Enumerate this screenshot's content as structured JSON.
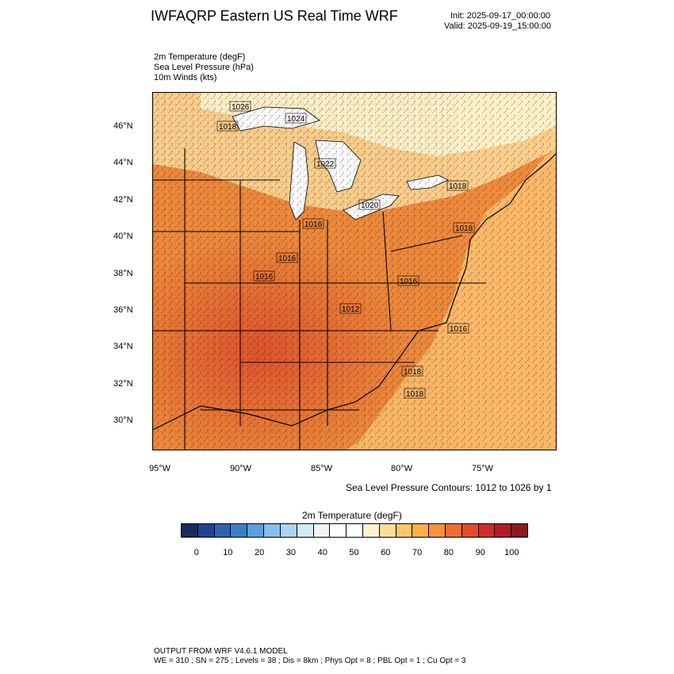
{
  "header": {
    "title": "IWFAQRP Eastern US Real Time WRF",
    "init": "Init: 2025-09-17_00:00:00",
    "valid": "Valid: 2025-09-19_15:00:00"
  },
  "fields": {
    "line1": "2m Temperature   (degF)",
    "line2": "Sea Level Pressure   (hPa)",
    "line3": "10m Winds   (kts)"
  },
  "axes": {
    "lat_labels": [
      "46°N",
      "44°N",
      "42°N",
      "40°N",
      "38°N",
      "36°N",
      "34°N",
      "32°N",
      "30°N"
    ],
    "lon_labels": [
      "95°W",
      "90°W",
      "85°W",
      "80°W",
      "75°W"
    ]
  },
  "map": {
    "pressure_labels": [
      "1026",
      "1024",
      "1018",
      "1022",
      "1018",
      "1020",
      "1016",
      "1016",
      "1016",
      "1016",
      "1018",
      "1012",
      "1016",
      "1018",
      "1018"
    ],
    "colors": {
      "ocean": "#fbb868",
      "land_warm": "#ef8a3c",
      "land_hot": "#e05a30",
      "north_cool": "#fde1a8",
      "lakes": "#ffffff",
      "border": "#000000"
    }
  },
  "contour_note": "Sea Level Pressure Contours: 1012 to 1026 by 1",
  "colorbar": {
    "title": "2m Temperature  (degF)",
    "ticks": [
      "0",
      "10",
      "20",
      "30",
      "40",
      "50",
      "60",
      "70",
      "80",
      "90",
      "100"
    ],
    "colors": [
      "#1a2a5e",
      "#1f4591",
      "#2d62b0",
      "#3d7fc7",
      "#5aa0dc",
      "#84c0ec",
      "#a9d5f2",
      "#d2e9f7",
      "#eef6fb",
      "#ffffff",
      "#ffffff",
      "#fff3cf",
      "#fedd9a",
      "#fdc56c",
      "#fbae4b",
      "#f8913a",
      "#ef6e31",
      "#e24b2b",
      "#cd2f27",
      "#b01f24",
      "#8c1a1e"
    ]
  },
  "footer": {
    "line1": "OUTPUT FROM WRF V4.6.1 MODEL",
    "line2": "WE = 310 ; SN = 275 ; Levels = 38 ; Dis = 8km ; Phys Opt = 8 ; PBL Opt = 1 ; Cu Opt = 3"
  }
}
